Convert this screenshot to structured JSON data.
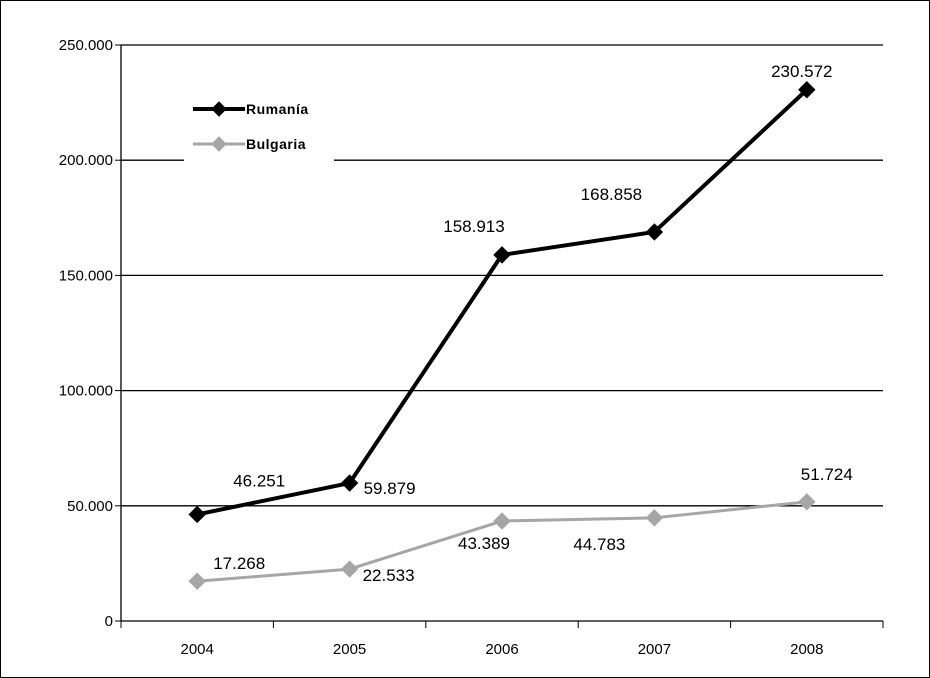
{
  "chart_data": {
    "type": "line",
    "title": "",
    "xlabel": "",
    "ylabel": "",
    "categories": [
      "2004",
      "2005",
      "2006",
      "2007",
      "2008"
    ],
    "ylim": [
      0,
      250000
    ],
    "yticks": [
      0,
      50000,
      100000,
      150000,
      200000,
      250000
    ],
    "ytick_labels": [
      "0",
      "50.000",
      "100.000",
      "150.000",
      "200.000",
      "250.000"
    ],
    "grid": "horizontal",
    "legend_position": "top-left",
    "series": [
      {
        "name": "Rumanía",
        "color": "#000000",
        "marker": "diamond",
        "values": [
          46251,
          59879,
          158913,
          168858,
          230572
        ],
        "labels": [
          "46.251",
          "59.879",
          "158.913",
          "168.858",
          "230.572"
        ]
      },
      {
        "name": "Bulgaria",
        "color": "#a6a6a6",
        "marker": "diamond",
        "values": [
          17268,
          22533,
          43389,
          44783,
          51724
        ],
        "labels": [
          "17.268",
          "22.533",
          "43.389",
          "44.783",
          "51.724"
        ]
      }
    ]
  }
}
